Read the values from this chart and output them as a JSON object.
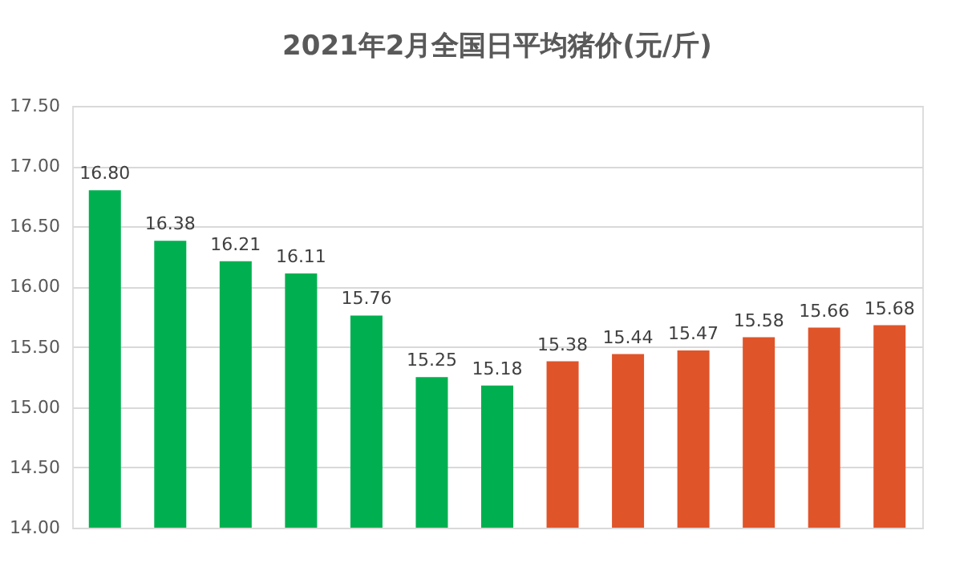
{
  "chart_data": {
    "type": "bar",
    "title": "2021年2月全国日平均猪价(元/斤)",
    "categories": [
      null,
      null,
      null,
      null,
      null,
      null,
      null,
      null,
      null,
      null,
      null,
      null,
      null
    ],
    "values": [
      16.8,
      16.38,
      16.21,
      16.11,
      15.76,
      15.25,
      15.18,
      15.38,
      15.44,
      15.47,
      15.58,
      15.66,
      15.68
    ],
    "value_labels": [
      "16.80",
      "16.38",
      "16.21",
      "16.11",
      "15.76",
      "15.25",
      "15.18",
      "15.38",
      "15.44",
      "15.47",
      "15.58",
      "15.66",
      "15.68"
    ],
    "colors": [
      "#00b050",
      "#00b050",
      "#00b050",
      "#00b050",
      "#00b050",
      "#00b050",
      "#00b050",
      "#e0542a",
      "#e0542a",
      "#e0542a",
      "#e0542a",
      "#e0542a",
      "#e0542a"
    ],
    "ylim": [
      14,
      17.5
    ],
    "yticks": [
      {
        "value": 14,
        "label": "14.00"
      },
      {
        "value": 14.5,
        "label": "14.50"
      },
      {
        "value": 15,
        "label": "15.00"
      },
      {
        "value": 15.5,
        "label": "15.50"
      },
      {
        "value": 16,
        "label": "16.00"
      },
      {
        "value": 16.5,
        "label": "16.50"
      },
      {
        "value": 17,
        "label": "17.00"
      },
      {
        "value": 17.5,
        "label": "17.50"
      }
    ],
    "grid": "y",
    "tick_labels": "y"
  }
}
